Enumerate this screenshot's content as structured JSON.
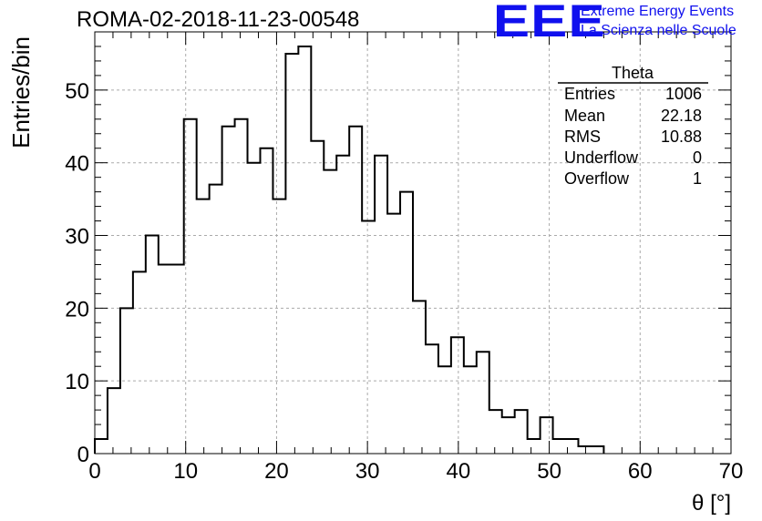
{
  "header": {
    "run_title": "ROMA-02-2018-11-23-00548",
    "logo_text": "EEE",
    "logo_line1": "Extreme Energy Events",
    "logo_line2": "La Scienza nelle Scuole",
    "brand_color": "#1010ee"
  },
  "stats": {
    "title": "Theta",
    "rows": [
      {
        "label": "Entries",
        "value": "1006"
      },
      {
        "label": "Mean",
        "value": "22.18"
      },
      {
        "label": "RMS",
        "value": "10.88"
      },
      {
        "label": "Underflow",
        "value": "0"
      },
      {
        "label": "Overflow",
        "value": "1"
      }
    ]
  },
  "chart_data": {
    "type": "bar",
    "style": "step-histogram",
    "bin_width": 1.4,
    "x_start": 0,
    "values": [
      2,
      9,
      20,
      25,
      30,
      26,
      26,
      46,
      35,
      37,
      45,
      46,
      40,
      42,
      35,
      55,
      56,
      43,
      39,
      41,
      45,
      32,
      41,
      33,
      36,
      21,
      15,
      12,
      16,
      12,
      14,
      6,
      5,
      6,
      2,
      5,
      2,
      2,
      1,
      1
    ],
    "xlabel": "θ [°]",
    "ylabel": "Entries/bin",
    "xlim": [
      0,
      70
    ],
    "ylim": [
      0,
      58
    ],
    "x_ticks": [
      0,
      10,
      20,
      30,
      40,
      50,
      60,
      70
    ],
    "y_ticks": [
      0,
      10,
      20,
      30,
      40,
      50
    ],
    "grid": true,
    "line_color": "#000000",
    "grid_color": "#aaaaaa"
  }
}
